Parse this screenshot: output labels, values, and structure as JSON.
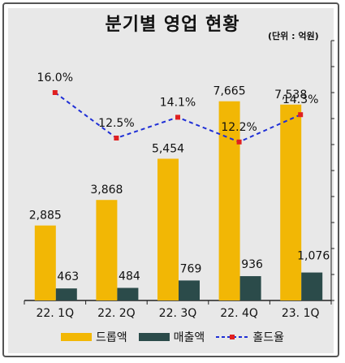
{
  "title": "분기별 영업 현황",
  "unit_label": "(단위 : 억원)",
  "colors": {
    "bar1": "#f2b705",
    "bar2": "#2b4b4a",
    "line": "#1f2fd6",
    "point": "#e02020"
  },
  "legend": {
    "series1": "드롭액",
    "series2": "매출액",
    "series3": "홀드율"
  },
  "chart_data": {
    "type": "bar",
    "categories": [
      "22. 1Q",
      "22. 2Q",
      "22. 3Q",
      "22. 4Q",
      "23. 1Q"
    ],
    "series": [
      {
        "name": "드롭액",
        "values": [
          2885,
          3868,
          5454,
          7665,
          7538
        ],
        "labels": [
          "2,885",
          "3,868",
          "5,454",
          "7,665",
          "7,538"
        ]
      },
      {
        "name": "매출액",
        "values": [
          463,
          484,
          769,
          936,
          1076
        ],
        "labels": [
          "463",
          "484",
          "769",
          "936",
          "1,076"
        ]
      }
    ],
    "line_series": {
      "name": "홀드율",
      "type": "line",
      "values": [
        16.0,
        12.5,
        14.1,
        12.2,
        14.3
      ],
      "labels": [
        "16.0%",
        "12.5%",
        "14.1%",
        "12.2%",
        "14.3%"
      ]
    },
    "ylim": [
      0,
      10000
    ],
    "ylim_secondary": [
      0,
      20
    ],
    "legend_position": "bottom"
  }
}
